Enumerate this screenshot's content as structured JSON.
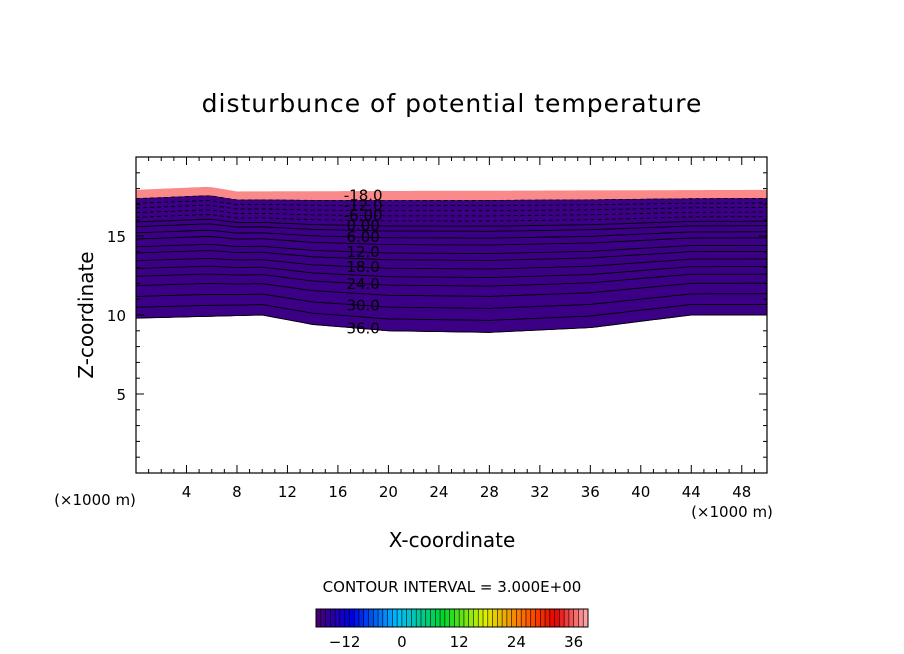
{
  "chart_data": {
    "type": "heatmap",
    "title": "disturbunce of potential temperature",
    "xlabel": "X-coordinate",
    "ylabel": "Z-coordinate",
    "x_unit": "(×1000 m)",
    "z_unit": "(×1000 m)",
    "xlim": [
      0,
      50
    ],
    "ylim": [
      0,
      20
    ],
    "x_ticks": [
      "4",
      "8",
      "12",
      "16",
      "20",
      "24",
      "28",
      "32",
      "36",
      "40",
      "44",
      "48"
    ],
    "y_ticks": [
      "5",
      "10",
      "15"
    ],
    "contour_interval_text": "CONTOUR INTERVAL = 3.000E+00",
    "contour_interval": 3.0,
    "value_range": [
      -18,
      39
    ],
    "colorbar_ticks": [
      "−12",
      "0",
      "12",
      "24",
      "36"
    ],
    "contour_labels": [
      "-18.0",
      "-12.0",
      "-6.00",
      "0.00",
      "6.00",
      "12.0",
      "18.0",
      "24.0",
      "30.0",
      "36.0"
    ],
    "field_top_z": [
      [
        0,
        17.9
      ],
      [
        5.8,
        18.1
      ],
      [
        8,
        17.8
      ],
      [
        50,
        17.9
      ]
    ],
    "field_bottom_z": [
      [
        0,
        9.8
      ],
      [
        10,
        10.0
      ],
      [
        14,
        9.4
      ],
      [
        20,
        9.0
      ],
      [
        28,
        8.9
      ],
      [
        36,
        9.2
      ],
      [
        44,
        10.0
      ],
      [
        50,
        10.0
      ]
    ],
    "levels_z_at_center": {
      "-18": 17.6,
      "-15": 17.3,
      "-12": 17.0,
      "-9": 16.7,
      "-6": 16.4,
      "-3": 16.1,
      "0": 15.8,
      "3": 15.5,
      "6": 15.1,
      "9": 14.7,
      "12": 14.2,
      "15": 13.8,
      "18": 13.3,
      "21": 12.8,
      "24": 12.3,
      "27": 11.7,
      "30": 11.0,
      "33": 10.3,
      "36": 9.6,
      "39": 9.0
    }
  }
}
